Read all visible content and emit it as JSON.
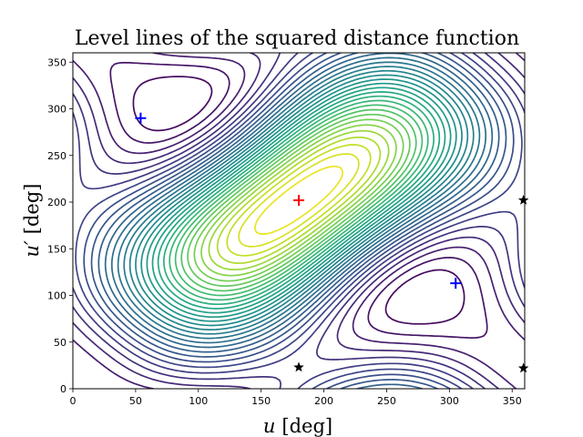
{
  "chart_data": {
    "type": "contour",
    "title": "Level lines of the squared distance function",
    "xlabel_var": "u",
    "xlabel_unit": "[deg]",
    "ylabel_var": "u′",
    "ylabel_unit": "[deg]",
    "xlim": [
      0,
      360
    ],
    "ylim": [
      0,
      360
    ],
    "xticks": [
      0,
      50,
      100,
      150,
      200,
      250,
      300,
      350
    ],
    "yticks": [
      0,
      50,
      100,
      150,
      200,
      250,
      300,
      350
    ],
    "colormap": "viridis",
    "levels": 32,
    "maximum_marker": {
      "x": 180,
      "y": 202,
      "color": "#ff0000",
      "shape": "plus"
    },
    "minimum_markers": [
      {
        "x": 54,
        "y": 290,
        "color": "#0000ff",
        "shape": "plus"
      },
      {
        "x": 305,
        "y": 113,
        "color": "#0000ff",
        "shape": "plus"
      }
    ],
    "saddle_markers": [
      {
        "x": 180,
        "y": 23,
        "color": "#000000",
        "shape": "star"
      },
      {
        "x": 359,
        "y": 202,
        "color": "#000000",
        "shape": "star"
      },
      {
        "x": 359,
        "y": 22,
        "color": "#000000",
        "shape": "star"
      }
    ]
  }
}
